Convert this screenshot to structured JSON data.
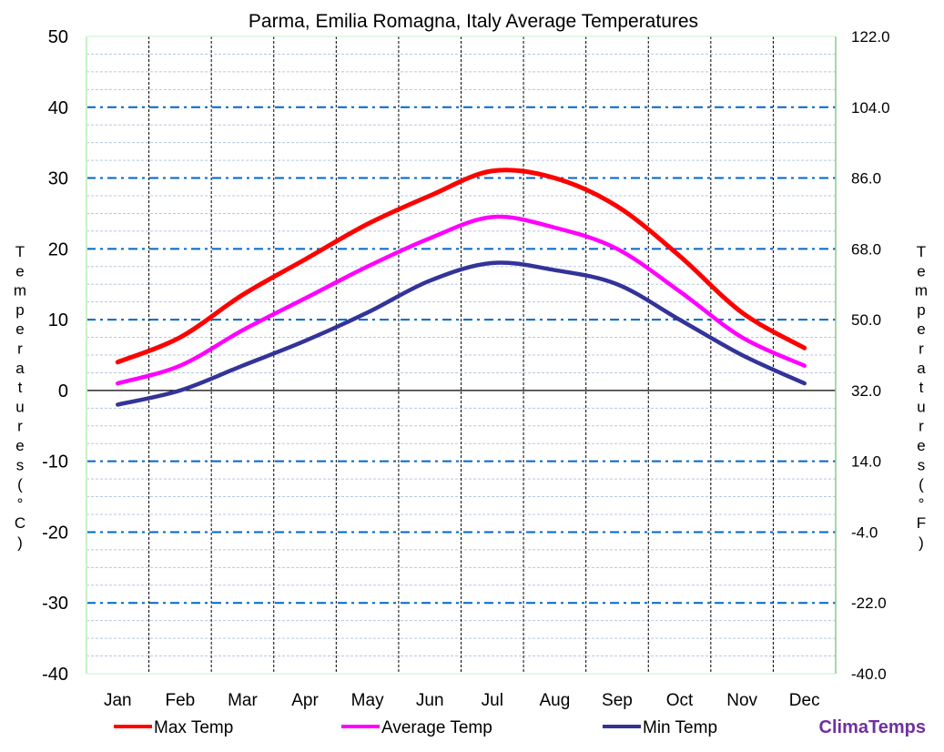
{
  "chart_data": {
    "type": "line",
    "title": "Parma, Emilia Romagna, Italy Average Temperatures",
    "categories": [
      "Jan",
      "Feb",
      "Mar",
      "Apr",
      "May",
      "Jun",
      "Jul",
      "Aug",
      "Sep",
      "Oct",
      "Nov",
      "Dec"
    ],
    "series": [
      {
        "name": "Max Temp",
        "color": "#ff0000",
        "values": [
          4,
          7.5,
          13.5,
          18.5,
          23.5,
          27.5,
          31,
          30,
          26,
          19,
          11,
          6
        ]
      },
      {
        "name": "Average Temp",
        "color": "#ff00ff",
        "values": [
          1,
          3.5,
          8.5,
          13,
          17.5,
          21.5,
          24.5,
          23,
          20,
          14,
          7.5,
          3.5
        ]
      },
      {
        "name": "Min Temp",
        "color": "#333399",
        "values": [
          -2,
          0,
          3.5,
          7,
          11,
          15.5,
          18,
          17,
          15,
          10,
          5,
          1
        ]
      }
    ],
    "ylabel": "Temperatures (°C)",
    "y2label": "Temperatures (°F)",
    "ylim": [
      -40,
      50
    ],
    "yticks": [
      "50",
      "40",
      "30",
      "20",
      "10",
      "0",
      "-10",
      "-20",
      "-30",
      "-40"
    ],
    "y2ticks": [
      "122.0",
      "104.0",
      "86.0",
      "68.0",
      "50.0",
      "32.0",
      "14.0",
      "-4.0",
      "-22.0",
      "-40.0"
    ],
    "grid": true,
    "legend": "bottom"
  },
  "brand": {
    "label": "ClimaTemps",
    "color": "#7030a0"
  }
}
